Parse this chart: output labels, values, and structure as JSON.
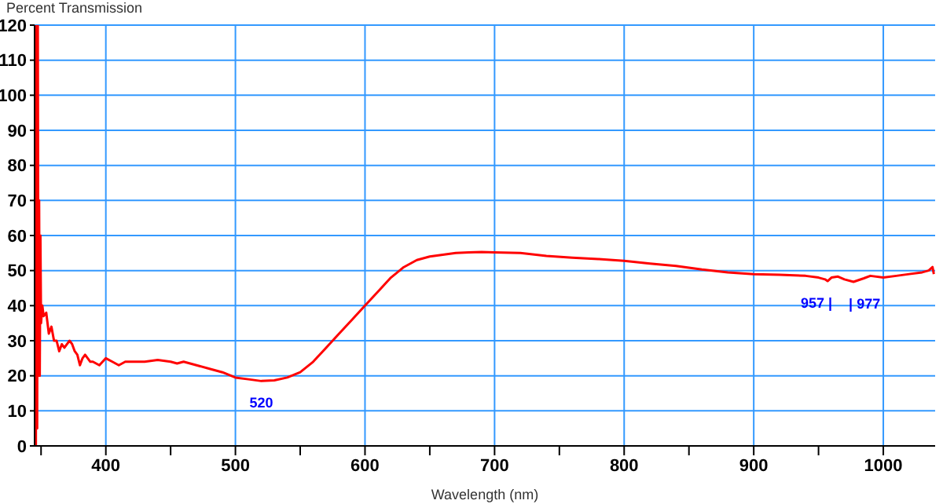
{
  "chart_data": {
    "type": "line",
    "ylabel": "Percent Transmission",
    "xlabel": "Wavelength (nm)",
    "xlim": [
      345,
      1040
    ],
    "ylim": [
      0,
      120
    ],
    "xticks": [
      {
        "value": 350,
        "label": null
      },
      400,
      {
        "value": 450,
        "label": null
      },
      500,
      {
        "value": 550,
        "label": null
      },
      600,
      {
        "value": 650,
        "label": null
      },
      700,
      {
        "value": 750,
        "label": null
      },
      800,
      {
        "value": 850,
        "label": null
      },
      900,
      {
        "value": 950,
        "label": null
      },
      1000
    ],
    "yticks": [
      0,
      10,
      20,
      30,
      40,
      50,
      60,
      70,
      80,
      90,
      100,
      110,
      120
    ],
    "grid": true,
    "legend": false,
    "marker": "none",
    "line_style": "solid",
    "series": [
      {
        "color": "#ff0000",
        "x": [
          345,
          345.5,
          346,
          346.5,
          347,
          347.5,
          348,
          348.5,
          349,
          349.5,
          350,
          351,
          352,
          354,
          356,
          358,
          360,
          362,
          364,
          366,
          368,
          370,
          372,
          374,
          376,
          378,
          380,
          382,
          384,
          386,
          388,
          390,
          395,
          400,
          405,
          410,
          415,
          420,
          430,
          440,
          450,
          455,
          460,
          470,
          480,
          490,
          500,
          510,
          520,
          530,
          540,
          550,
          560,
          570,
          580,
          590,
          600,
          610,
          620,
          630,
          640,
          650,
          660,
          670,
          680,
          690,
          700,
          720,
          740,
          760,
          780,
          800,
          820,
          840,
          860,
          880,
          900,
          920,
          940,
          950,
          955,
          957,
          960,
          965,
          970,
          977,
          985,
          990,
          1000,
          1010,
          1020,
          1030,
          1035,
          1038,
          1039
        ],
        "values": [
          0,
          120,
          0,
          120,
          5,
          120,
          20,
          70,
          20,
          60,
          35,
          40,
          37,
          38,
          32,
          34,
          30,
          30,
          27,
          29,
          28,
          29,
          30,
          29,
          27,
          26,
          23,
          25,
          26,
          25,
          24,
          24,
          23,
          25,
          24,
          23,
          24,
          24,
          24,
          24.5,
          24,
          23.5,
          24,
          23,
          22,
          21,
          19.5,
          19,
          18.5,
          18.7,
          19.5,
          21,
          24,
          28,
          32,
          36,
          40,
          44,
          48,
          51,
          53,
          54,
          54.5,
          55,
          55.2,
          55.3,
          55.2,
          55,
          54.2,
          53.7,
          53.3,
          52.8,
          52,
          51.3,
          50.3,
          49.5,
          49,
          48.8,
          48.5,
          48,
          47.5,
          47,
          48,
          48.3,
          47.5,
          46.8,
          47.8,
          48.5,
          48,
          48.5,
          49,
          49.5,
          50,
          51,
          49
        ]
      }
    ],
    "annotations": [
      {
        "text": "520",
        "x": 520,
        "y": 18.5
      },
      {
        "text": "957 |",
        "x": 957,
        "y": 47
      },
      {
        "text": "| 977",
        "x": 977,
        "y": 46.8
      }
    ]
  }
}
